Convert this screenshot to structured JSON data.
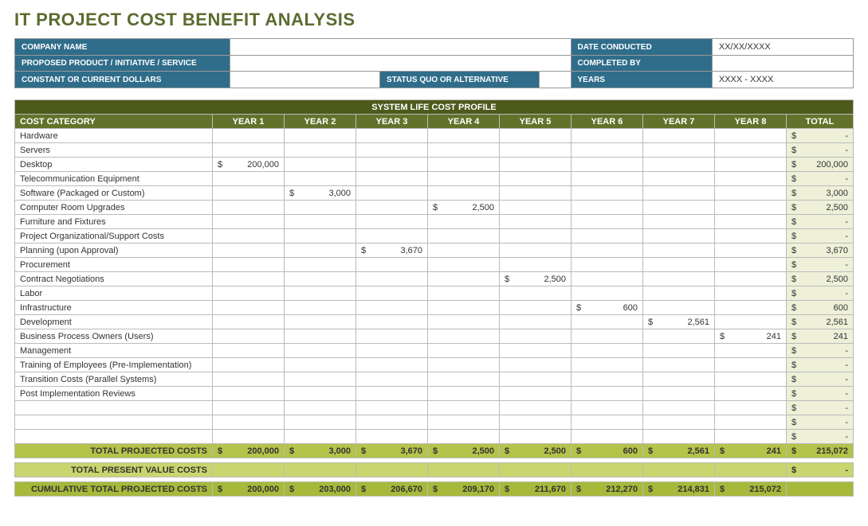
{
  "title": "IT PROJECT COST BENEFIT ANALYSIS",
  "info": {
    "company_label": "COMPANY NAME",
    "company_value": "",
    "date_label": "DATE CONDUCTED",
    "date_value": "XX/XX/XXXX",
    "proposed_label": "PROPOSED PRODUCT / INITIATIVE / SERVICE",
    "proposed_value": "",
    "completed_label": "COMPLETED BY",
    "completed_value": "",
    "constant_label": "CONSTANT OR CURRENT DOLLARS",
    "constant_value": "",
    "status_label": "STATUS QUO OR ALTERNATIVE",
    "status_value": "",
    "years_label": "YEARS",
    "years_value": "XXXX - XXXX"
  },
  "cost": {
    "section_title": "SYSTEM LIFE COST PROFILE",
    "category_label": "COST CATEGORY",
    "year_labels": [
      "YEAR 1",
      "YEAR 2",
      "YEAR 3",
      "YEAR 4",
      "YEAR 5",
      "YEAR 6",
      "YEAR 7",
      "YEAR 8"
    ],
    "total_label": "TOTAL",
    "rows": [
      {
        "label": "Hardware",
        "y": [
          "",
          "",
          "",
          "",
          "",
          "",
          "",
          ""
        ],
        "total": "-"
      },
      {
        "label": "Servers",
        "y": [
          "",
          "",
          "",
          "",
          "",
          "",
          "",
          ""
        ],
        "total": "-"
      },
      {
        "label": "Desktop",
        "y": [
          "200,000",
          "",
          "",
          "",
          "",
          "",
          "",
          ""
        ],
        "total": "200,000"
      },
      {
        "label": "Telecommunication Equipment",
        "y": [
          "",
          "",
          "",
          "",
          "",
          "",
          "",
          ""
        ],
        "total": "-"
      },
      {
        "label": "Software (Packaged or Custom)",
        "y": [
          "",
          "3,000",
          "",
          "",
          "",
          "",
          "",
          ""
        ],
        "total": "3,000"
      },
      {
        "label": "Computer Room Upgrades",
        "y": [
          "",
          "",
          "",
          "2,500",
          "",
          "",
          "",
          ""
        ],
        "total": "2,500"
      },
      {
        "label": "Furniture and Fixtures",
        "y": [
          "",
          "",
          "",
          "",
          "",
          "",
          "",
          ""
        ],
        "total": "-"
      },
      {
        "label": "Project Organizational/Support Costs",
        "y": [
          "",
          "",
          "",
          "",
          "",
          "",
          "",
          ""
        ],
        "total": "-"
      },
      {
        "label": "Planning (upon Approval)",
        "y": [
          "",
          "",
          "3,670",
          "",
          "",
          "",
          "",
          ""
        ],
        "total": "3,670"
      },
      {
        "label": "Procurement",
        "y": [
          "",
          "",
          "",
          "",
          "",
          "",
          "",
          ""
        ],
        "total": "-"
      },
      {
        "label": "Contract Negotiations",
        "y": [
          "",
          "",
          "",
          "",
          "2,500",
          "",
          "",
          ""
        ],
        "total": "2,500"
      },
      {
        "label": "Labor",
        "y": [
          "",
          "",
          "",
          "",
          "",
          "",
          "",
          ""
        ],
        "total": "-"
      },
      {
        "label": "Infrastructure",
        "y": [
          "",
          "",
          "",
          "",
          "",
          "600",
          "",
          ""
        ],
        "total": "600"
      },
      {
        "label": "Development",
        "y": [
          "",
          "",
          "",
          "",
          "",
          "",
          "2,561",
          ""
        ],
        "total": "2,561"
      },
      {
        "label": "Business Process Owners (Users)",
        "y": [
          "",
          "",
          "",
          "",
          "",
          "",
          "",
          "241"
        ],
        "total": "241"
      },
      {
        "label": "Management",
        "y": [
          "",
          "",
          "",
          "",
          "",
          "",
          "",
          ""
        ],
        "total": "-"
      },
      {
        "label": "Training of Employees (Pre-Implementation)",
        "y": [
          "",
          "",
          "",
          "",
          "",
          "",
          "",
          ""
        ],
        "total": "-"
      },
      {
        "label": "Transition Costs (Parallel Systems)",
        "y": [
          "",
          "",
          "",
          "",
          "",
          "",
          "",
          ""
        ],
        "total": "-"
      },
      {
        "label": "Post Implementation Reviews",
        "y": [
          "",
          "",
          "",
          "",
          "",
          "",
          "",
          ""
        ],
        "total": "-"
      },
      {
        "label": "",
        "y": [
          "",
          "",
          "",
          "",
          "",
          "",
          "",
          ""
        ],
        "total": "-"
      },
      {
        "label": "",
        "y": [
          "",
          "",
          "",
          "",
          "",
          "",
          "",
          ""
        ],
        "total": "-"
      },
      {
        "label": "",
        "y": [
          "",
          "",
          "",
          "",
          "",
          "",
          "",
          ""
        ],
        "total": "-"
      }
    ],
    "totals": {
      "label": "TOTAL PROJECTED COSTS",
      "y": [
        "200,000",
        "3,000",
        "3,670",
        "2,500",
        "2,500",
        "600",
        "2,561",
        "241"
      ],
      "total": "215,072"
    },
    "pv": {
      "label": "TOTAL PRESENT VALUE COSTS",
      "y": [
        "",
        "",
        "",
        "",
        "",
        "",
        "",
        ""
      ],
      "total": "-"
    },
    "cum": {
      "label": "CUMULATIVE TOTAL PROJECTED COSTS",
      "y": [
        "200,000",
        "203,000",
        "206,670",
        "209,170",
        "211,670",
        "212,270",
        "214,831",
        "215,072"
      ]
    }
  },
  "colors": {
    "title": "#5c6b2f",
    "info_header_bg": "#2f6d8a",
    "section_bg": "#4d5a1c",
    "col_header_bg": "#63722a",
    "total_col_bg": "#eef0d8",
    "totals_row_bg": "#b4c34a",
    "pv_row_bg": "#c9d66f",
    "cum_row_bg": "#a7b93b"
  }
}
